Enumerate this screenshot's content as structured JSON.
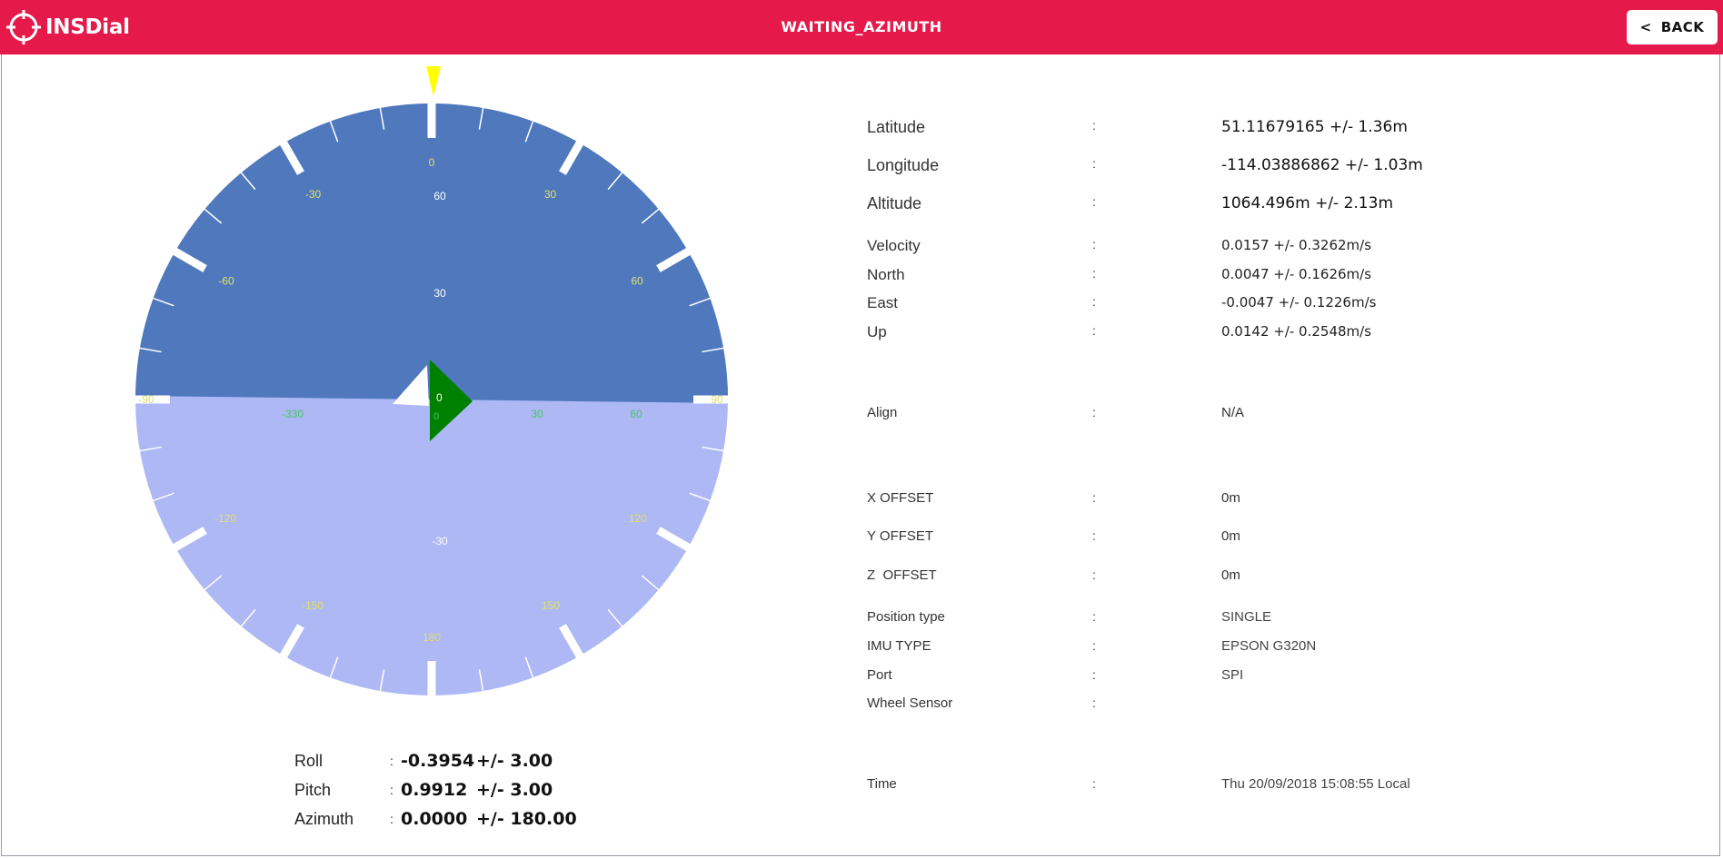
{
  "header": {
    "app_name": "INSDial",
    "status": "WAITING_AZIMUTH",
    "back_label": "BACK",
    "back_chevron": "<",
    "accent_color": "#e5194a"
  },
  "dial": {
    "upper_color": "#4f78bd",
    "lower_color": "#adb8f5",
    "pointer_color": "#ffff00",
    "heading_marker_color": "#008000",
    "outer_ticks_upper": [
      "0",
      "30",
      "60",
      "90",
      "-90",
      "-60",
      "-30"
    ],
    "outer_ticks_lower": [
      "120",
      "150",
      "180",
      "-150",
      "-120"
    ],
    "pitch_ticks": [
      "60",
      "30",
      "0",
      "-30"
    ],
    "inner_scale": [
      "-330",
      "0",
      "30",
      "60"
    ],
    "center_label": "0"
  },
  "attitude": {
    "colon": ":",
    "rows": [
      {
        "label": "Roll",
        "value": "-0.3954",
        "accuracy": "+/- 3.00"
      },
      {
        "label": "Pitch",
        "value": "0.9912",
        "accuracy": "+/- 3.00"
      },
      {
        "label": "Azimuth",
        "value": "0.0000",
        "accuracy": "+/- 180.00"
      }
    ]
  },
  "info": {
    "colon": ":",
    "latitude": {
      "label": "Latitude",
      "value": "51.11679165 +/- 1.36m"
    },
    "longitude": {
      "label": "Longitude",
      "value": "-114.03886862 +/- 1.03m"
    },
    "altitude": {
      "label": "Altitude",
      "value": "1064.496m +/- 2.13m"
    },
    "velocity": {
      "label": "Velocity",
      "value": "0.0157 +/- 0.3262m/s"
    },
    "north": {
      "label": "North",
      "value": "0.0047 +/- 0.1626m/s"
    },
    "east": {
      "label": "East",
      "value": "-0.0047 +/- 0.1226m/s"
    },
    "up": {
      "label": "Up",
      "value": "0.0142 +/- 0.2548m/s"
    },
    "align": {
      "label": "Align",
      "value": "N/A"
    },
    "x_offset": {
      "label": "X OFFSET",
      "value": "0m"
    },
    "y_offset": {
      "label": "Y OFFSET",
      "value": "0m"
    },
    "z_offset": {
      "label": "Z  OFFSET",
      "value": "0m"
    },
    "position_type": {
      "label": "Position type",
      "value": "SINGLE"
    },
    "imu_type": {
      "label": "IMU TYPE",
      "value": "EPSON G320N"
    },
    "port": {
      "label": "Port",
      "value": "SPI"
    },
    "wheel_sensor": {
      "label": "Wheel Sensor",
      "value": ""
    },
    "time": {
      "label": "Time",
      "value": "Thu 20/09/2018 15:08:55 Local"
    }
  }
}
